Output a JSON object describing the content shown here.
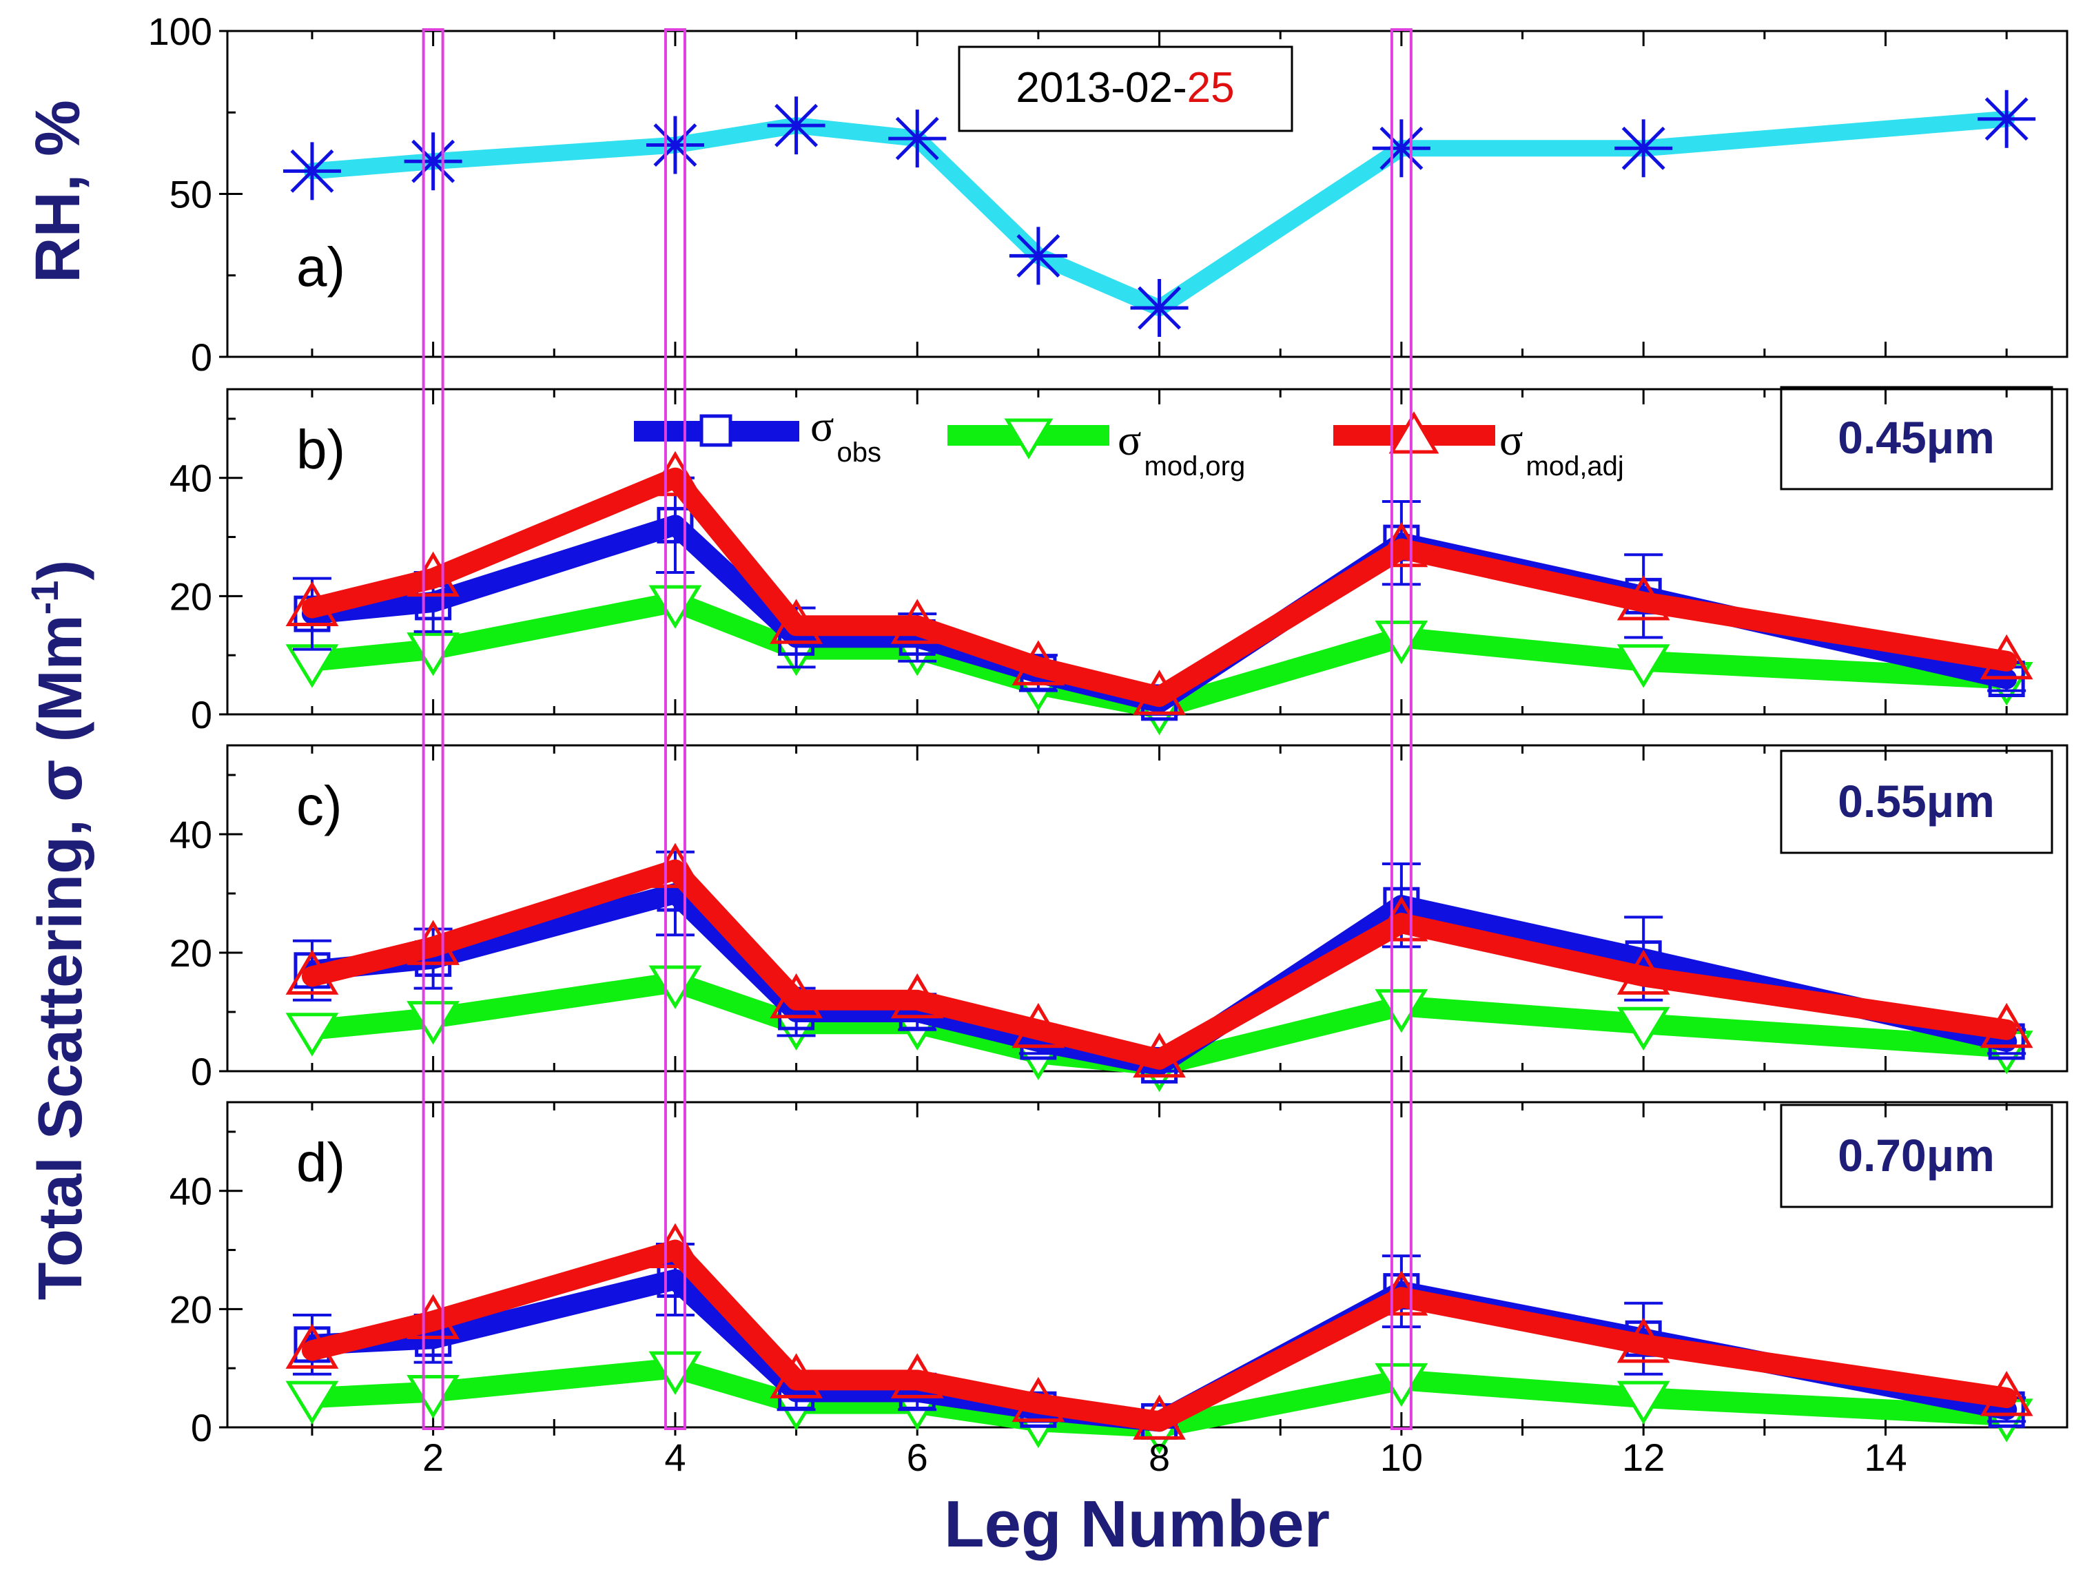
{
  "chart_data": {
    "type": "line",
    "x_label": "Leg Number",
    "legs": [
      1,
      2,
      4,
      5,
      6,
      7,
      8,
      10,
      12,
      15
    ],
    "x_ticks": [
      "2",
      "4",
      "6",
      "8",
      "10",
      "12",
      "14"
    ],
    "highlighted_legs": [
      2,
      4,
      10
    ],
    "date_label": {
      "prefix": "2013-02-",
      "day": "25"
    },
    "colors": {
      "axis_label": "#1e1e78",
      "obs": "#1010e0",
      "mod_org": "#10f010",
      "mod_adj": "#f01010",
      "rh": "#30e0f0",
      "rh_marker": "#1010e0",
      "highlight": "#e040e0",
      "date_day": "#e01010"
    },
    "panels": [
      {
        "id": "a",
        "letter": "a)",
        "ylabel": "RH, %",
        "ylim": [
          0,
          100
        ],
        "yticks": [
          "0",
          "50",
          "100"
        ],
        "series": [
          {
            "name": "RH",
            "values": [
              57,
              60,
              65,
              71,
              67,
              31,
              15,
              64,
              64,
              73
            ]
          }
        ]
      },
      {
        "id": "b",
        "letter": "b)",
        "wavelength": "0.45μm",
        "ylim": [
          0,
          55
        ],
        "yticks": [
          "0",
          "20",
          "40"
        ],
        "series": [
          {
            "name": "σobs",
            "values": [
              17,
              19,
              32,
              13,
              13,
              7,
              2,
              29,
              20,
              6
            ],
            "err": [
              6,
              5,
              8,
              5,
              4,
              3,
              2,
              7,
              7,
              2
            ]
          },
          {
            "name": "σmod,org",
            "values": [
              9,
              11,
              19,
              11,
              11,
              5,
              1,
              13,
              9,
              6
            ]
          },
          {
            "name": "σmod,adj",
            "values": [
              18,
              23,
              40,
              15,
              15,
              8,
              3,
              28,
              19,
              9
            ]
          }
        ]
      },
      {
        "id": "c",
        "letter": "c)",
        "wavelength": "0.55μm",
        "ylim": [
          0,
          55
        ],
        "yticks": [
          "0",
          "20",
          "40"
        ],
        "series": [
          {
            "name": "σobs",
            "values": [
              17,
              19,
              30,
              10,
              10,
              5,
              1,
              28,
              19,
              5
            ],
            "err": [
              5,
              5,
              7,
              4,
              3,
              2,
              1,
              7,
              7,
              2
            ]
          },
          {
            "name": "σmod,org",
            "values": [
              7,
              9,
              15,
              8,
              8,
              3,
              1,
              11,
              8,
              4
            ]
          },
          {
            "name": "σmod,adj",
            "values": [
              16,
              21,
              34,
              12,
              12,
              7,
              2,
              25,
              16,
              7
            ]
          }
        ]
      },
      {
        "id": "d",
        "letter": "d)",
        "wavelength": "0.70μm",
        "ylim": [
          0,
          55
        ],
        "yticks": [
          "0",
          "20",
          "40"
        ],
        "series": [
          {
            "name": "σobs",
            "values": [
              14,
              15,
              25,
              6,
              6,
              3,
              1,
              23,
              15,
              3
            ],
            "err": [
              5,
              4,
              6,
              3,
              3,
              2,
              1,
              6,
              6,
              2
            ]
          },
          {
            "name": "σmod,org",
            "values": [
              5,
              6,
              10,
              4,
              4,
              1,
              0,
              8,
              5,
              2
            ]
          },
          {
            "name": "σmod,adj",
            "values": [
              13,
              18,
              30,
              8,
              8,
              4,
              1,
              22,
              14,
              5
            ]
          }
        ]
      }
    ],
    "shared_ylabel": {
      "main": "Total Scattering, σ (Mm",
      "sup": "-1",
      "close": ")"
    },
    "legend": [
      {
        "key": "obs",
        "symbol": "σ",
        "sub": "obs"
      },
      {
        "key": "mod_org",
        "symbol": "σ",
        "sub": "mod,org"
      },
      {
        "key": "mod_adj",
        "symbol": "σ",
        "sub": "mod,adj"
      }
    ]
  }
}
